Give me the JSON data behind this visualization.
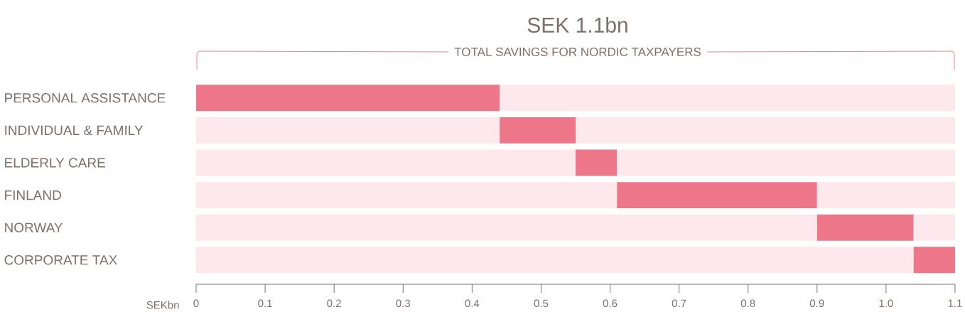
{
  "chart_data": {
    "type": "bar",
    "orientation": "horizontal",
    "title": "SEK 1.1bn",
    "subtitle": "TOTAL SAVINGS FOR NORDIC TAXPAYERS",
    "xlabel": "SEKbn",
    "categories": [
      "PERSONAL ASSISTANCE",
      "INDIVIDUAL & FAMILY",
      "ELDERLY CARE",
      "FINLAND",
      "NORWAY",
      "CORPORATE TAX"
    ],
    "series": [
      {
        "color": "#fde9ed",
        "values": [
          0,
          0.44,
          0.55,
          0.61,
          0.9,
          1.04
        ]
      },
      {
        "color": "#ee7689",
        "values": [
          0.44,
          0.11,
          0.06,
          0.29,
          0.14,
          0.06
        ]
      },
      {
        "color": "#fde9ed",
        "values": [
          0.66,
          0.55,
          0.49,
          0.2,
          0.06,
          0
        ]
      }
    ],
    "stacked": true,
    "xlim": [
      0,
      1.1
    ],
    "xticks": [
      0,
      0.1,
      0.2,
      0.3,
      0.4,
      0.5,
      0.6,
      0.7,
      0.8,
      0.9,
      {
        "value": 1,
        "label": "1.0"
      },
      1.1
    ]
  }
}
